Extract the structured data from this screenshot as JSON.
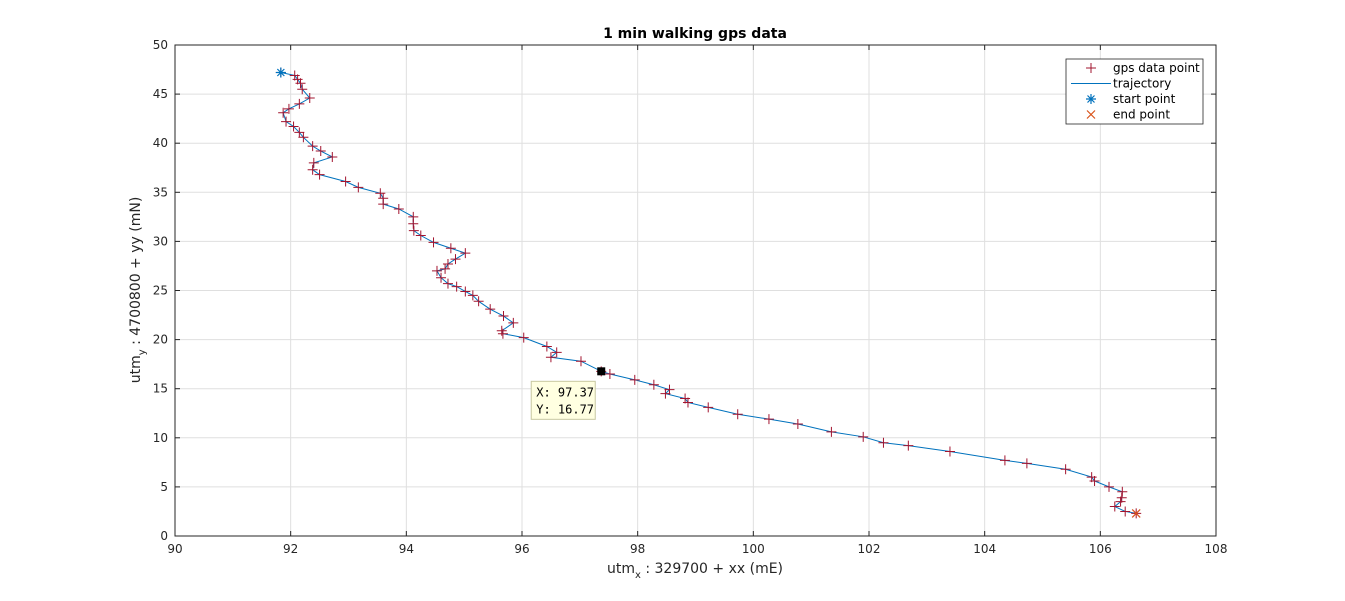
{
  "chart_data": {
    "type": "line",
    "title": "1 min walking gps data",
    "xlabel_main": "utm",
    "xlabel_sub": "x",
    "xlabel_rest": " : 329700 + xx (mE)",
    "ylabel_main": "utm",
    "ylabel_sub": "y",
    "ylabel_rest": " : 4700800 + yy (mN)",
    "xlim": [
      90,
      108
    ],
    "ylim": [
      0,
      50
    ],
    "xticks": [
      90,
      92,
      94,
      96,
      98,
      100,
      102,
      104,
      106,
      108
    ],
    "yticks": [
      0,
      5,
      10,
      15,
      20,
      25,
      30,
      35,
      40,
      45,
      50
    ],
    "grid": true,
    "legend_position": "top-right",
    "legend": [
      {
        "label": "gps data point",
        "marker": "plus",
        "color": "#a2142f"
      },
      {
        "label": "trajectory",
        "marker": "line",
        "color": "#0072bd"
      },
      {
        "label": "start point",
        "marker": "asterisk",
        "color": "#0072bd"
      },
      {
        "label": "end point",
        "marker": "x",
        "color": "#d95319"
      }
    ],
    "series": [
      {
        "name": "gps data point",
        "points": [
          [
            91.83,
            47.2
          ],
          [
            92.07,
            46.9
          ],
          [
            92.12,
            46.5
          ],
          [
            92.17,
            46.1
          ],
          [
            92.2,
            45.5
          ],
          [
            92.33,
            44.6
          ],
          [
            92.15,
            44.0
          ],
          [
            91.97,
            43.5
          ],
          [
            91.87,
            43.1
          ],
          [
            91.92,
            42.2
          ],
          [
            92.05,
            41.7
          ],
          [
            92.15,
            41.1
          ],
          [
            92.22,
            40.6
          ],
          [
            92.38,
            39.7
          ],
          [
            92.52,
            39.2
          ],
          [
            92.72,
            38.6
          ],
          [
            92.4,
            38.0
          ],
          [
            92.38,
            37.3
          ],
          [
            92.5,
            36.8
          ],
          [
            92.95,
            36.1
          ],
          [
            93.17,
            35.5
          ],
          [
            93.55,
            34.9
          ],
          [
            93.6,
            34.4
          ],
          [
            93.6,
            33.8
          ],
          [
            93.87,
            33.3
          ],
          [
            94.12,
            32.5
          ],
          [
            94.12,
            31.8
          ],
          [
            94.13,
            31.1
          ],
          [
            94.25,
            30.6
          ],
          [
            94.47,
            29.9
          ],
          [
            94.77,
            29.3
          ],
          [
            95.02,
            28.8
          ],
          [
            94.85,
            28.2
          ],
          [
            94.72,
            27.7
          ],
          [
            94.67,
            27.2
          ],
          [
            94.53,
            27.0
          ],
          [
            94.6,
            26.3
          ],
          [
            94.72,
            25.7
          ],
          [
            94.87,
            25.4
          ],
          [
            95.02,
            24.9
          ],
          [
            95.15,
            24.5
          ],
          [
            95.25,
            23.9
          ],
          [
            95.45,
            23.1
          ],
          [
            95.68,
            22.4
          ],
          [
            95.85,
            21.7
          ],
          [
            95.65,
            20.9
          ],
          [
            95.67,
            20.6
          ],
          [
            96.03,
            20.2
          ],
          [
            96.43,
            19.3
          ],
          [
            96.6,
            18.7
          ],
          [
            96.5,
            18.2
          ],
          [
            97.02,
            17.8
          ],
          [
            97.37,
            16.77
          ],
          [
            97.52,
            16.5
          ],
          [
            97.95,
            15.9
          ],
          [
            98.28,
            15.4
          ],
          [
            98.55,
            14.9
          ],
          [
            98.48,
            14.5
          ],
          [
            98.82,
            14.0
          ],
          [
            98.87,
            13.6
          ],
          [
            99.22,
            13.1
          ],
          [
            99.73,
            12.4
          ],
          [
            100.27,
            11.9
          ],
          [
            100.77,
            11.4
          ],
          [
            101.35,
            10.6
          ],
          [
            101.9,
            10.1
          ],
          [
            102.25,
            9.5
          ],
          [
            102.68,
            9.2
          ],
          [
            103.4,
            8.6
          ],
          [
            104.35,
            7.7
          ],
          [
            104.73,
            7.4
          ],
          [
            105.4,
            6.8
          ],
          [
            105.85,
            6.0
          ],
          [
            105.9,
            5.6
          ],
          [
            106.15,
            5.0
          ],
          [
            106.38,
            4.5
          ],
          [
            106.37,
            3.9
          ],
          [
            106.35,
            3.5
          ],
          [
            106.25,
            3.0
          ],
          [
            106.43,
            2.5
          ],
          [
            106.62,
            2.3
          ]
        ]
      }
    ],
    "start_point": [
      91.83,
      47.2
    ],
    "end_point": [
      106.62,
      2.3
    ],
    "datatip": {
      "point": [
        97.37,
        16.77
      ],
      "x_text": "X: 97.37",
      "y_text": "Y: 16.77"
    },
    "colors": {
      "marker": "#a2142f",
      "line": "#0072bd",
      "start": "#0072bd",
      "end": "#d95319",
      "grid": "#dfdfdf",
      "axis": "#262626"
    }
  }
}
